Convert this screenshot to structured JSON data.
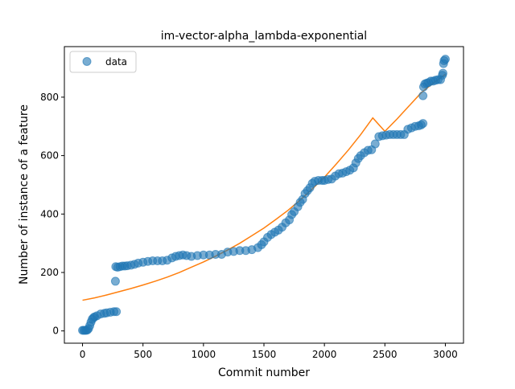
{
  "chart_data": {
    "type": "scatter",
    "title": "im-vector-alpha_lambda-exponential",
    "xlabel": "Commit number",
    "ylabel": "Number of instance of a feature",
    "xlim": [
      -150,
      3150
    ],
    "ylim": [
      -42,
      973
    ],
    "xticks": [
      0,
      500,
      1000,
      1500,
      2000,
      2500,
      3000
    ],
    "yticks": [
      0,
      200,
      400,
      600,
      800
    ],
    "grid": false,
    "legend": {
      "placement": "top-left",
      "entries": [
        "data"
      ]
    },
    "colors": {
      "data": "#1f77b4",
      "fit": "#ff7f0e"
    },
    "series": [
      {
        "name": "data",
        "kind": "points",
        "color": "#1f77b4",
        "points": [
          [
            0,
            2
          ],
          [
            10,
            2
          ],
          [
            20,
            2
          ],
          [
            30,
            2
          ],
          [
            40,
            3
          ],
          [
            50,
            8
          ],
          [
            60,
            18
          ],
          [
            70,
            30
          ],
          [
            80,
            40
          ],
          [
            90,
            45
          ],
          [
            100,
            48
          ],
          [
            120,
            52
          ],
          [
            150,
            58
          ],
          [
            180,
            60
          ],
          [
            200,
            62
          ],
          [
            230,
            64
          ],
          [
            260,
            66
          ],
          [
            280,
            66
          ],
          [
            272,
            170
          ],
          [
            275,
            220
          ],
          [
            290,
            218
          ],
          [
            310,
            220
          ],
          [
            330,
            222
          ],
          [
            350,
            222
          ],
          [
            370,
            223
          ],
          [
            400,
            225
          ],
          [
            430,
            228
          ],
          [
            460,
            232
          ],
          [
            500,
            235
          ],
          [
            540,
            238
          ],
          [
            580,
            240
          ],
          [
            620,
            240
          ],
          [
            660,
            240
          ],
          [
            700,
            242
          ],
          [
            740,
            250
          ],
          [
            770,
            255
          ],
          [
            800,
            258
          ],
          [
            830,
            260
          ],
          [
            860,
            258
          ],
          [
            900,
            255
          ],
          [
            950,
            258
          ],
          [
            1000,
            260
          ],
          [
            1050,
            260
          ],
          [
            1100,
            262
          ],
          [
            1150,
            262
          ],
          [
            1200,
            270
          ],
          [
            1250,
            272
          ],
          [
            1300,
            275
          ],
          [
            1350,
            275
          ],
          [
            1400,
            278
          ],
          [
            1450,
            285
          ],
          [
            1480,
            295
          ],
          [
            1500,
            305
          ],
          [
            1530,
            320
          ],
          [
            1560,
            330
          ],
          [
            1590,
            338
          ],
          [
            1620,
            345
          ],
          [
            1650,
            355
          ],
          [
            1680,
            370
          ],
          [
            1710,
            380
          ],
          [
            1730,
            398
          ],
          [
            1750,
            408
          ],
          [
            1780,
            425
          ],
          [
            1800,
            440
          ],
          [
            1820,
            450
          ],
          [
            1840,
            470
          ],
          [
            1860,
            480
          ],
          [
            1880,
            490
          ],
          [
            1900,
            505
          ],
          [
            1920,
            512
          ],
          [
            1950,
            515
          ],
          [
            1980,
            515
          ],
          [
            2000,
            515
          ],
          [
            2030,
            518
          ],
          [
            2060,
            520
          ],
          [
            2090,
            530
          ],
          [
            2120,
            538
          ],
          [
            2150,
            540
          ],
          [
            2180,
            545
          ],
          [
            2210,
            550
          ],
          [
            2240,
            558
          ],
          [
            2260,
            575
          ],
          [
            2280,
            590
          ],
          [
            2300,
            600
          ],
          [
            2330,
            610
          ],
          [
            2360,
            618
          ],
          [
            2390,
            620
          ],
          [
            2420,
            640
          ],
          [
            2450,
            665
          ],
          [
            2480,
            668
          ],
          [
            2510,
            670
          ],
          [
            2540,
            672
          ],
          [
            2570,
            672
          ],
          [
            2600,
            672
          ],
          [
            2630,
            672
          ],
          [
            2660,
            672
          ],
          [
            2690,
            690
          ],
          [
            2720,
            695
          ],
          [
            2750,
            700
          ],
          [
            2780,
            702
          ],
          [
            2800,
            705
          ],
          [
            2815,
            710
          ],
          [
            2815,
            805
          ],
          [
            2820,
            835
          ],
          [
            2830,
            845
          ],
          [
            2845,
            848
          ],
          [
            2860,
            850
          ],
          [
            2880,
            855
          ],
          [
            2900,
            855
          ],
          [
            2920,
            858
          ],
          [
            2940,
            860
          ],
          [
            2960,
            860
          ],
          [
            2975,
            875
          ],
          [
            2980,
            882
          ],
          [
            2985,
            915
          ],
          [
            2990,
            925
          ],
          [
            3000,
            930
          ]
        ]
      },
      {
        "kind": "fit",
        "color": "#ff7f0e",
        "points": [
          [
            0,
            105
          ],
          [
            100,
            113
          ],
          [
            200,
            123
          ],
          [
            300,
            134
          ],
          [
            400,
            145
          ],
          [
            500,
            157
          ],
          [
            600,
            170
          ],
          [
            700,
            184
          ],
          [
            800,
            200
          ],
          [
            900,
            218
          ],
          [
            1000,
            236
          ],
          [
            1100,
            256
          ],
          [
            1200,
            277
          ],
          [
            1300,
            300
          ],
          [
            1400,
            326
          ],
          [
            1500,
            352
          ],
          [
            1600,
            382
          ],
          [
            1700,
            413
          ],
          [
            1800,
            448
          ],
          [
            1900,
            486
          ],
          [
            2000,
            526
          ],
          [
            2100,
            572
          ],
          [
            2200,
            620
          ],
          [
            2300,
            672
          ],
          [
            2400,
            729
          ],
          [
            2500,
            683
          ],
          [
            2600,
            725
          ],
          [
            2700,
            770
          ],
          [
            2800,
            815
          ],
          [
            2900,
            848
          ],
          [
            3000,
            878
          ]
        ]
      }
    ]
  }
}
